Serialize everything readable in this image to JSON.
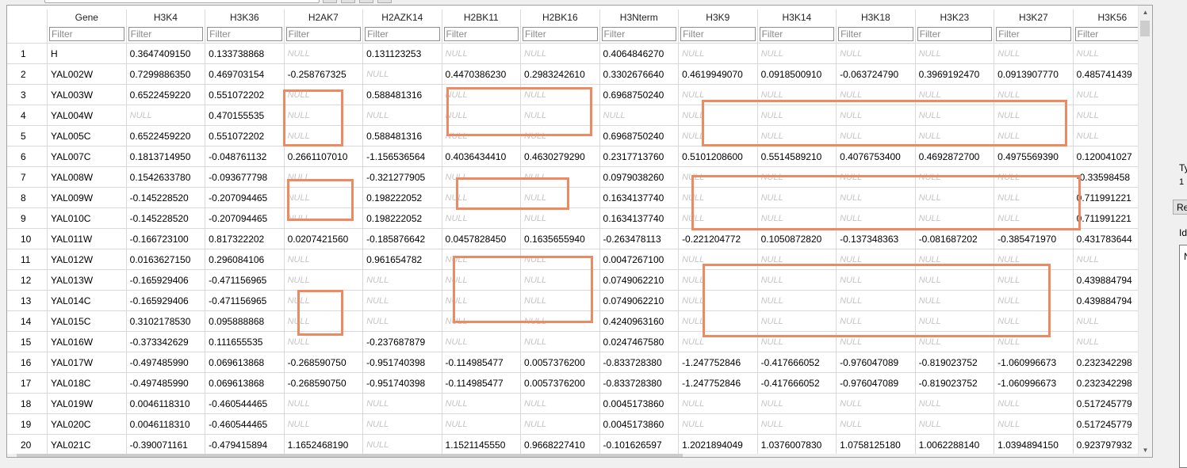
{
  "table": {
    "columns": [
      "Gene",
      "H3K4",
      "H3K36",
      "H2AK7",
      "H2AZK14",
      "H2BK11",
      "H2BK16",
      "H3Nterm",
      "H3K9",
      "H3K14",
      "H3K18",
      "H3K23",
      "H3K27",
      "H3K56"
    ],
    "filter_placeholder": "Filter",
    "rows": [
      {
        "n": "1",
        "cells": [
          "H",
          "0.3647409150",
          "0.133738868",
          "NULL",
          "0.131123253",
          "NULL",
          "NULL",
          "0.4064846270",
          "NULL",
          "NULL",
          "NULL",
          "NULL",
          "NULL",
          "NULL"
        ]
      },
      {
        "n": "2",
        "cells": [
          "YAL002W",
          "0.7299886350",
          "0.469703154",
          "-0.258767325",
          "NULL",
          "0.4470386230",
          "0.2983242610",
          "0.3302676640",
          "0.4619949070",
          "0.0918500910",
          "-0.063724790",
          "0.3969192470",
          "0.0913907770",
          "0.485741439"
        ]
      },
      {
        "n": "3",
        "cells": [
          "YAL003W",
          "0.6522459220",
          "0.551072202",
          "NULL",
          "0.588481316",
          "NULL",
          "NULL",
          "0.6968750240",
          "NULL",
          "NULL",
          "NULL",
          "NULL",
          "NULL",
          "NULL"
        ]
      },
      {
        "n": "4",
        "cells": [
          "YAL004W",
          "NULL",
          "0.470155535",
          "NULL",
          "NULL",
          "NULL",
          "NULL",
          "NULL",
          "NULL",
          "NULL",
          "NULL",
          "NULL",
          "NULL",
          "NULL"
        ]
      },
      {
        "n": "5",
        "cells": [
          "YAL005C",
          "0.6522459220",
          "0.551072202",
          "NULL",
          "0.588481316",
          "NULL",
          "NULL",
          "0.6968750240",
          "NULL",
          "NULL",
          "NULL",
          "NULL",
          "NULL",
          "NULL"
        ]
      },
      {
        "n": "6",
        "cells": [
          "YAL007C",
          "0.1813714950",
          "-0.048761132",
          "0.2661107010",
          "-1.156536564",
          "0.4036434410",
          "0.4630279290",
          "0.2317713760",
          "0.5101208600",
          "0.5514589210",
          "0.4076753400",
          "0.4692872700",
          "0.4975569390",
          "0.120041027"
        ]
      },
      {
        "n": "7",
        "cells": [
          "YAL008W",
          "0.1542633780",
          "-0.093677798",
          "NULL",
          "-0.321277905",
          "NULL",
          "NULL",
          "0.0979038260",
          "NULL",
          "NULL",
          "NULL",
          "NULL",
          "NULL",
          "-0.33598458"
        ]
      },
      {
        "n": "8",
        "cells": [
          "YAL009W",
          "-0.145228520",
          "-0.207094465",
          "NULL",
          "0.198222052",
          "NULL",
          "NULL",
          "0.1634137740",
          "NULL",
          "NULL",
          "NULL",
          "NULL",
          "NULL",
          "0.711991221"
        ]
      },
      {
        "n": "9",
        "cells": [
          "YAL010C",
          "-0.145228520",
          "-0.207094465",
          "NULL",
          "0.198222052",
          "NULL",
          "NULL",
          "0.1634137740",
          "NULL",
          "NULL",
          "NULL",
          "NULL",
          "NULL",
          "0.711991221"
        ]
      },
      {
        "n": "10",
        "cells": [
          "YAL011W",
          "-0.166723100",
          "0.817322202",
          "0.0207421560",
          "-0.185876642",
          "0.0457828450",
          "0.1635655940",
          "-0.263478113",
          "-0.221204772",
          "0.1050872820",
          "-0.137348363",
          "-0.081687202",
          "-0.385471970",
          "0.431783644"
        ]
      },
      {
        "n": "11",
        "cells": [
          "YAL012W",
          "0.0163627150",
          "0.296084106",
          "NULL",
          "0.961654782",
          "NULL",
          "NULL",
          "0.0047267100",
          "NULL",
          "NULL",
          "NULL",
          "NULL",
          "NULL",
          "NULL"
        ]
      },
      {
        "n": "12",
        "cells": [
          "YAL013W",
          "-0.165929406",
          "-0.471156965",
          "NULL",
          "NULL",
          "NULL",
          "NULL",
          "0.0749062210",
          "NULL",
          "NULL",
          "NULL",
          "NULL",
          "NULL",
          "0.439884794"
        ]
      },
      {
        "n": "13",
        "cells": [
          "YAL014C",
          "-0.165929406",
          "-0.471156965",
          "NULL",
          "NULL",
          "NULL",
          "NULL",
          "0.0749062210",
          "NULL",
          "NULL",
          "NULL",
          "NULL",
          "NULL",
          "0.439884794"
        ]
      },
      {
        "n": "14",
        "cells": [
          "YAL015C",
          "0.3102178530",
          "0.095888868",
          "NULL",
          "NULL",
          "NULL",
          "NULL",
          "0.4240963160",
          "NULL",
          "NULL",
          "NULL",
          "NULL",
          "NULL",
          "NULL"
        ]
      },
      {
        "n": "15",
        "cells": [
          "YAL016W",
          "-0.373342629",
          "0.111655535",
          "NULL",
          "-0.237687879",
          "NULL",
          "NULL",
          "0.0247467580",
          "NULL",
          "NULL",
          "NULL",
          "NULL",
          "NULL",
          "NULL"
        ]
      },
      {
        "n": "16",
        "cells": [
          "YAL017W",
          "-0.497485990",
          "0.069613868",
          "-0.268590750",
          "-0.951740398",
          "-0.114985477",
          "0.0057376200",
          "-0.833728380",
          "-1.247752846",
          "-0.417666052",
          "-0.976047089",
          "-0.819023752",
          "-1.060996673",
          "0.232342298"
        ]
      },
      {
        "n": "17",
        "cells": [
          "YAL018C",
          "-0.497485990",
          "0.069613868",
          "-0.268590750",
          "-0.951740398",
          "-0.114985477",
          "0.0057376200",
          "-0.833728380",
          "-1.247752846",
          "-0.417666052",
          "-0.976047089",
          "-0.819023752",
          "-1.060996673",
          "0.232342298"
        ]
      },
      {
        "n": "18",
        "cells": [
          "YAL019W",
          "0.0046118310",
          "-0.460544465",
          "NULL",
          "NULL",
          "NULL",
          "NULL",
          "0.0045173860",
          "NULL",
          "NULL",
          "NULL",
          "NULL",
          "NULL",
          "0.517245779"
        ]
      },
      {
        "n": "19",
        "cells": [
          "YAL020C",
          "0.0046118310",
          "-0.460544465",
          "NULL",
          "NULL",
          "NULL",
          "NULL",
          "0.0045173860",
          "NULL",
          "NULL",
          "NULL",
          "NULL",
          "NULL",
          "0.517245779"
        ]
      },
      {
        "n": "20",
        "cells": [
          "YAL021C",
          "-0.390071161",
          "-0.479415894",
          "1.1652468190",
          "NULL",
          "1.1521145550",
          "0.9668227410",
          "-0.101626597",
          "1.2021894049",
          "1.0376007830",
          "1.0758125180",
          "1.0062288140",
          "1.0394894150",
          "0.923797932"
        ]
      }
    ]
  },
  "side_panel": {
    "label_ty": "Ty",
    "label_1": "1",
    "button_label": "Re",
    "label_id": "Id",
    "box_text": "N"
  },
  "annotation_color": "#ee8a61"
}
